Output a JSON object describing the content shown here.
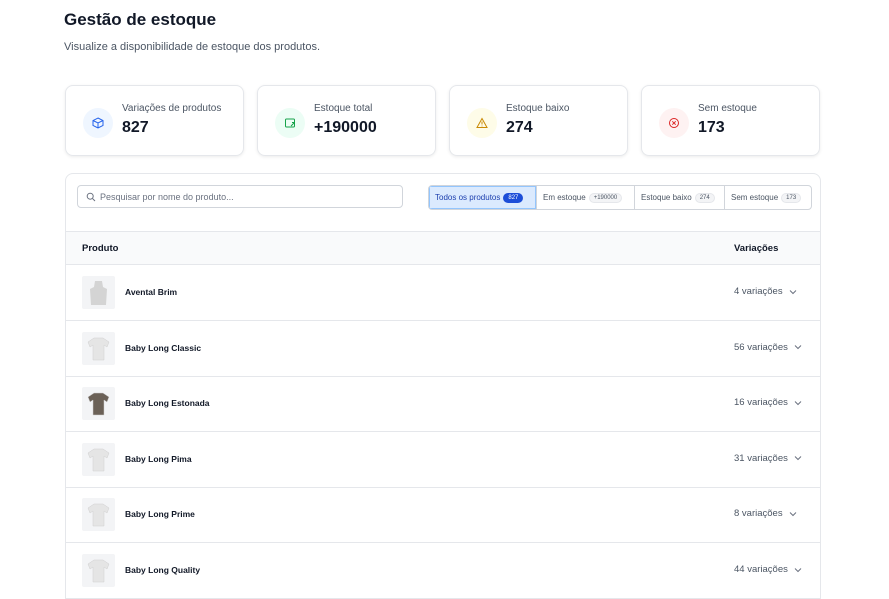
{
  "header": {
    "title": "Gestão de estoque",
    "subtitle": "Visualize a disponibilidade de estoque dos produtos."
  },
  "stats": [
    {
      "label": "Variações de produtos",
      "value": "827"
    },
    {
      "label": "Estoque total",
      "value": "+190000"
    },
    {
      "label": "Estoque baixo",
      "value": "274"
    },
    {
      "label": "Sem estoque",
      "value": "173"
    }
  ],
  "search": {
    "placeholder": "Pesquisar por nome do produto..."
  },
  "filters": [
    {
      "label": "Todos os produtos",
      "count": "827"
    },
    {
      "label": "Em estoque",
      "count": "+190000"
    },
    {
      "label": "Estoque baixo",
      "count": "274"
    },
    {
      "label": "Sem estoque",
      "count": "173"
    }
  ],
  "table": {
    "columns": [
      "Produto",
      "Variações"
    ],
    "rows": [
      {
        "name": "Avental Brim",
        "variations": "4 variações"
      },
      {
        "name": "Baby Long Classic",
        "variations": "56 variações"
      },
      {
        "name": "Baby Long Estonada",
        "variations": "16 variações"
      },
      {
        "name": "Baby Long Pima",
        "variations": "31 variações"
      },
      {
        "name": "Baby Long Prime",
        "variations": "8 variações"
      },
      {
        "name": "Baby Long Quality",
        "variations": "44 variações"
      }
    ]
  }
}
